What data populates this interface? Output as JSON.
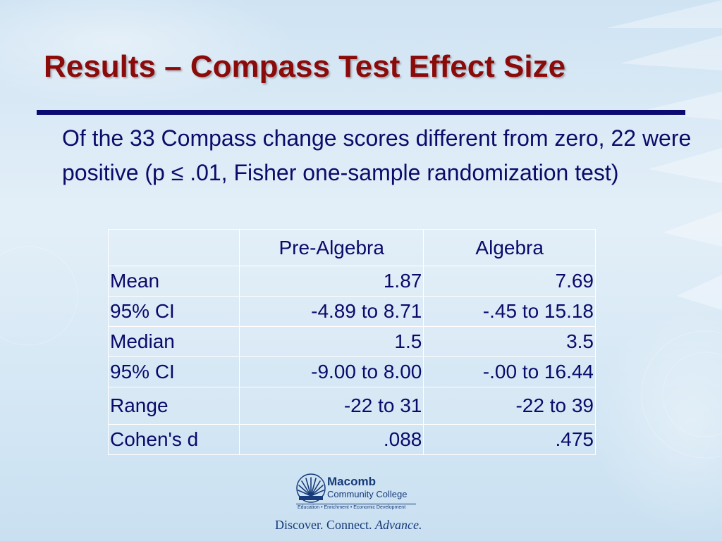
{
  "slide": {
    "title": "Results – Compass Test Effect Size",
    "body": "Of the 33 Compass change scores different from zero, 22 were positive (p ≤ .01, Fisher one-sample randomization test)"
  },
  "table": {
    "headers": [
      "",
      "Pre-Algebra",
      "Algebra"
    ],
    "rows": [
      {
        "label": "Mean",
        "pre_algebra": "1.87",
        "algebra": "7.69"
      },
      {
        "label": "95% CI",
        "pre_algebra": "-4.89 to 8.71",
        "algebra": "-.45 to 15.18"
      },
      {
        "label": "Median",
        "pre_algebra": "1.5",
        "algebra": "3.5"
      },
      {
        "label": "95% CI",
        "pre_algebra": "-9.00 to 8.00",
        "algebra": "-.00 to 16.44"
      },
      {
        "label": "Range",
        "pre_algebra": "-22 to 31",
        "algebra": "-22 to 39"
      },
      {
        "label": "Cohen's d",
        "pre_algebra": ".088",
        "algebra": ".475"
      }
    ]
  },
  "footer": {
    "logo_name_line1": "Macomb",
    "logo_name_line2": "Community College",
    "logo_tagline": "Education • Enrichment • Economic Development",
    "slogan_part1": "Discover.",
    "slogan_part2": "Connect.",
    "slogan_part3": "Advance."
  },
  "colors": {
    "title": "#8b0a0a",
    "text": "#0b0b6a",
    "rule": "#0a0a72",
    "logo": "#163a7a"
  }
}
